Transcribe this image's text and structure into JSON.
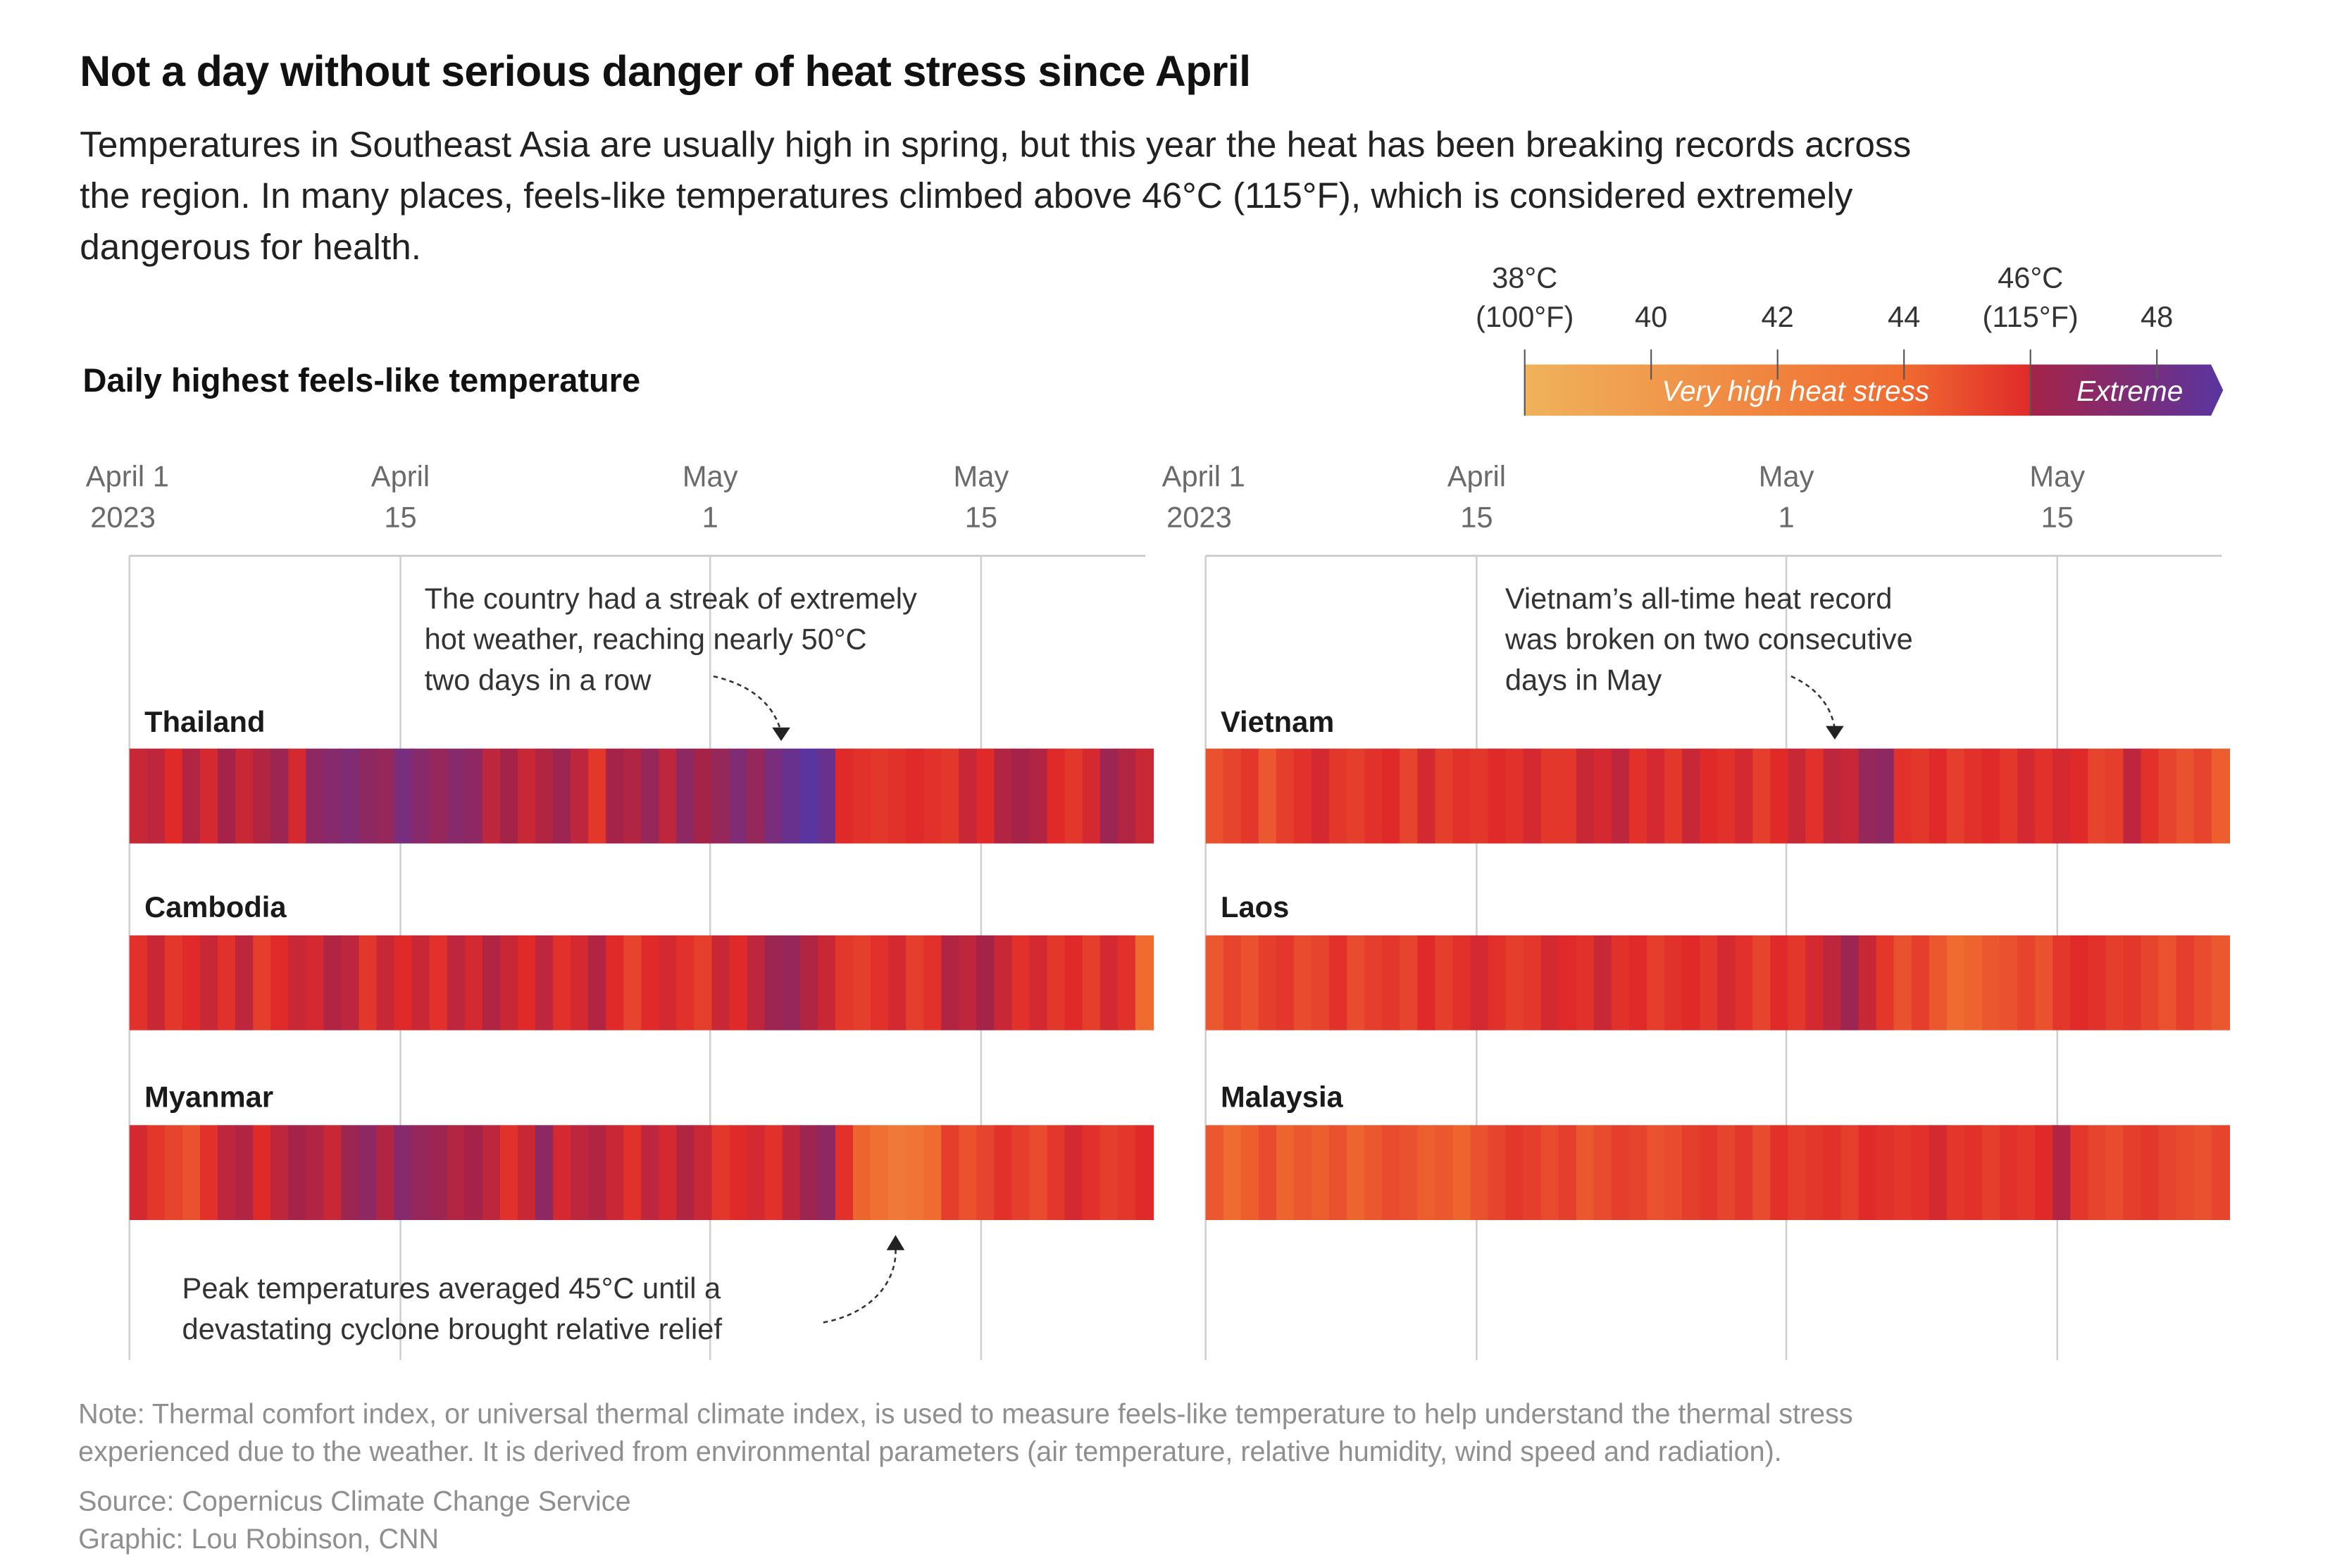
{
  "title": "Not a day without serious danger of heat stress since April",
  "subtitle": [
    "Temperatures in Southeast Asia are usually high in spring, but this year the heat has been breaking records across",
    "the region. In many places, feels-like temperatures climbed above 46°C (115°F), which is considered extremely",
    "dangerous for health."
  ],
  "section_heading": "Daily highest feels-like temperature",
  "legend": {
    "scale_min": 38,
    "scale_max": 49,
    "threshold": 46,
    "ticks": [
      {
        "value": 38,
        "lines": [
          "38°C",
          "(100°F)"
        ]
      },
      {
        "value": 40,
        "lines": [
          "40"
        ]
      },
      {
        "value": 42,
        "lines": [
          "42"
        ]
      },
      {
        "value": 44,
        "lines": [
          "44"
        ]
      },
      {
        "value": 46,
        "lines": [
          "46°C",
          "(115°F)"
        ]
      },
      {
        "value": 48,
        "lines": [
          "48"
        ]
      }
    ],
    "band_labels": {
      "high": "Very high heat stress",
      "extreme": "Extreme"
    },
    "colors": {
      "c38": "#f0b25b",
      "c44": "#f06b30",
      "c46": "#e02a2a",
      "c47": "#a52348",
      "c49": "#5a35a0"
    }
  },
  "axis_ticks": [
    {
      "day": 0,
      "lines": [
        "April 1",
        "2023"
      ]
    },
    {
      "day": 14,
      "lines": [
        "April",
        "15"
      ]
    },
    {
      "day": 30,
      "lines": [
        "May",
        "1"
      ]
    },
    {
      "day": 44,
      "lines": [
        "May",
        "15"
      ]
    }
  ],
  "chart_data": {
    "type": "heatmap",
    "title": "Daily highest feels-like temperature",
    "x_start": "2023-04-01",
    "x_end": "2023-05-23",
    "unit": "°C",
    "series": [
      {
        "name": "Thailand",
        "values": [
          46.4,
          46.6,
          46.0,
          46.8,
          46.2,
          47.0,
          46.4,
          46.8,
          47.2,
          46.2,
          47.6,
          47.8,
          48.0,
          47.6,
          47.4,
          48.2,
          47.8,
          47.4,
          47.8,
          47.6,
          46.6,
          47.0,
          46.4,
          46.8,
          47.2,
          46.6,
          45.6,
          47.0,
          46.8,
          47.4,
          46.6,
          47.6,
          47.0,
          47.4,
          48.0,
          47.4,
          48.2,
          48.6,
          49.0,
          48.6,
          46.0,
          45.8,
          45.6,
          45.8,
          46.0,
          45.8,
          45.6,
          46.4,
          46.0,
          46.8,
          47.0,
          46.8,
          46.0,
          45.6,
          46.2,
          47.2,
          46.8,
          46.4
        ]
      },
      {
        "name": "Cambodia",
        "values": [
          45.8,
          46.4,
          45.6,
          46.0,
          46.4,
          45.8,
          46.6,
          45.4,
          46.0,
          46.4,
          46.2,
          46.8,
          46.6,
          45.6,
          46.4,
          46.0,
          46.4,
          45.8,
          46.6,
          46.2,
          46.8,
          46.4,
          46.0,
          46.6,
          45.8,
          46.2,
          46.8,
          46.0,
          45.2,
          46.0,
          46.2,
          45.8,
          45.4,
          46.4,
          46.0,
          46.6,
          47.2,
          47.4,
          46.8,
          46.4,
          45.6,
          45.4,
          45.8,
          46.2,
          45.4,
          45.8,
          46.8,
          46.6,
          47.0,
          46.4,
          45.8,
          46.2,
          45.6,
          46.0,
          45.4,
          46.2,
          45.8,
          44.0
        ]
      },
      {
        "name": "Myanmar",
        "values": [
          46.2,
          45.6,
          45.2,
          44.8,
          45.8,
          46.6,
          46.8,
          46.0,
          46.6,
          47.0,
          46.8,
          46.4,
          47.2,
          47.6,
          46.8,
          47.8,
          47.4,
          47.2,
          46.8,
          47.0,
          46.6,
          45.8,
          46.4,
          47.6,
          46.2,
          46.6,
          46.8,
          46.4,
          45.8,
          46.6,
          46.2,
          46.8,
          46.4,
          45.6,
          46.0,
          46.2,
          45.8,
          46.6,
          47.2,
          47.6,
          45.8,
          44.2,
          43.6,
          42.8,
          43.2,
          44.0,
          45.4,
          44.8,
          45.2,
          45.8,
          45.4,
          45.0,
          45.6,
          46.2,
          45.8,
          45.4,
          45.6,
          46.0
        ]
      },
      {
        "name": "Vietnam",
        "values": [
          44.8,
          45.2,
          45.6,
          44.6,
          45.4,
          45.8,
          46.2,
          45.6,
          45.4,
          45.8,
          46.0,
          45.2,
          46.2,
          45.4,
          45.8,
          45.6,
          46.0,
          45.8,
          46.2,
          45.6,
          45.6,
          46.4,
          46.2,
          46.6,
          45.8,
          46.2,
          45.6,
          46.4,
          46.0,
          45.8,
          46.2,
          45.4,
          46.0,
          46.4,
          45.8,
          46.6,
          46.4,
          47.4,
          47.6,
          45.8,
          45.6,
          46.0,
          45.4,
          45.8,
          46.0,
          45.6,
          46.2,
          45.8,
          46.2,
          46.0,
          45.2,
          45.4,
          46.6,
          45.8,
          45.2,
          44.8,
          45.2,
          44.4
        ]
      },
      {
        "name": "Laos",
        "values": [
          44.6,
          45.2,
          44.8,
          45.4,
          45.6,
          45.0,
          45.2,
          45.8,
          45.0,
          45.4,
          45.6,
          45.2,
          46.0,
          45.4,
          45.8,
          46.2,
          45.8,
          45.4,
          45.6,
          46.2,
          46.0,
          45.8,
          46.4,
          45.8,
          46.0,
          45.4,
          45.8,
          46.0,
          45.6,
          46.2,
          45.8,
          45.2,
          46.0,
          45.6,
          46.2,
          46.6,
          47.2,
          46.4,
          45.6,
          44.8,
          45.4,
          44.6,
          44.0,
          44.2,
          44.6,
          44.8,
          45.2,
          44.8,
          45.6,
          46.0,
          45.8,
          45.4,
          45.6,
          45.2,
          44.8,
          45.4,
          45.0,
          44.6
        ]
      },
      {
        "name": "Malaysia",
        "values": [
          44.6,
          44.0,
          44.4,
          45.0,
          44.2,
          44.6,
          44.4,
          44.8,
          44.2,
          44.6,
          45.0,
          44.8,
          44.4,
          44.6,
          44.2,
          44.8,
          45.2,
          45.6,
          45.4,
          45.0,
          45.4,
          44.6,
          45.0,
          45.4,
          45.2,
          44.8,
          45.0,
          45.4,
          45.6,
          45.2,
          45.6,
          45.0,
          45.8,
          45.4,
          45.6,
          45.8,
          45.4,
          46.0,
          45.8,
          45.6,
          45.8,
          46.2,
          45.6,
          45.8,
          45.4,
          45.8,
          45.6,
          46.0,
          46.8,
          45.6,
          45.2,
          45.0,
          45.4,
          45.6,
          45.2,
          45.0,
          44.8,
          45.2
        ]
      }
    ]
  },
  "annotations": {
    "thailand": [
      "The country had a streak of extremely",
      "hot weather, reaching nearly 50°C",
      "two days in a row"
    ],
    "vietnam": [
      "Vietnam’s all-time heat record",
      "was broken on two consecutive",
      "days in May"
    ],
    "myanmar": [
      "Peak temperatures averaged 45°C until a",
      "devastating cyclone brought relative relief"
    ]
  },
  "note": [
    "Note: Thermal comfort index, or universal thermal climate index, is used to measure feels-like temperature to help understand the thermal stress",
    "experienced due to the weather. It is derived from environmental parameters (air temperature, relative humidity, wind speed and radiation)."
  ],
  "source": "Source: Copernicus Climate Change Service",
  "graphic": "Graphic: Lou Robinson, CNN"
}
